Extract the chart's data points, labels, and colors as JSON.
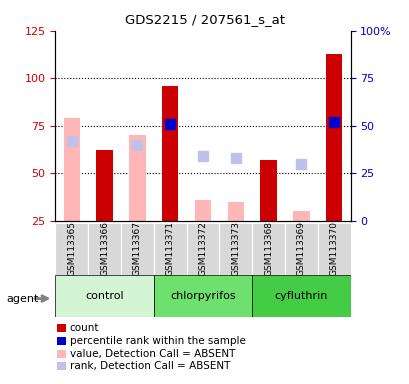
{
  "title": "GDS2215 / 207561_s_at",
  "samples": [
    "GSM113365",
    "GSM113366",
    "GSM113367",
    "GSM113371",
    "GSM113372",
    "GSM113373",
    "GSM113368",
    "GSM113369",
    "GSM113370"
  ],
  "count_values": [
    null,
    62,
    null,
    96,
    null,
    null,
    57,
    null,
    113
  ],
  "rank_values": [
    null,
    null,
    null,
    76,
    null,
    null,
    null,
    null,
    77
  ],
  "value_absent": [
    79,
    null,
    70,
    null,
    36,
    35,
    null,
    30,
    null
  ],
  "rank_absent": [
    67,
    null,
    65,
    null,
    59,
    58,
    null,
    55,
    null
  ],
  "ylim_left": [
    25,
    125
  ],
  "yticks_left": [
    25,
    50,
    75,
    100,
    125
  ],
  "ytick_labels_right": [
    "0",
    "25",
    "50",
    "75",
    "100%"
  ],
  "color_count": "#cc0000",
  "color_rank": "#0000cc",
  "color_value_absent": "#ffb6b6",
  "color_rank_absent": "#c0c0e8",
  "background_color": "#ffffff",
  "tick_label_color_left": "#cc0000",
  "tick_label_color_right": "#0000cc",
  "groups": [
    {
      "label": "control",
      "start": 0,
      "end": 3,
      "color": "#d4f5d4"
    },
    {
      "label": "chlorpyrifos",
      "start": 3,
      "end": 6,
      "color": "#6ee06e"
    },
    {
      "label": "cyfluthrin",
      "start": 6,
      "end": 9,
      "color": "#44cc44"
    }
  ]
}
